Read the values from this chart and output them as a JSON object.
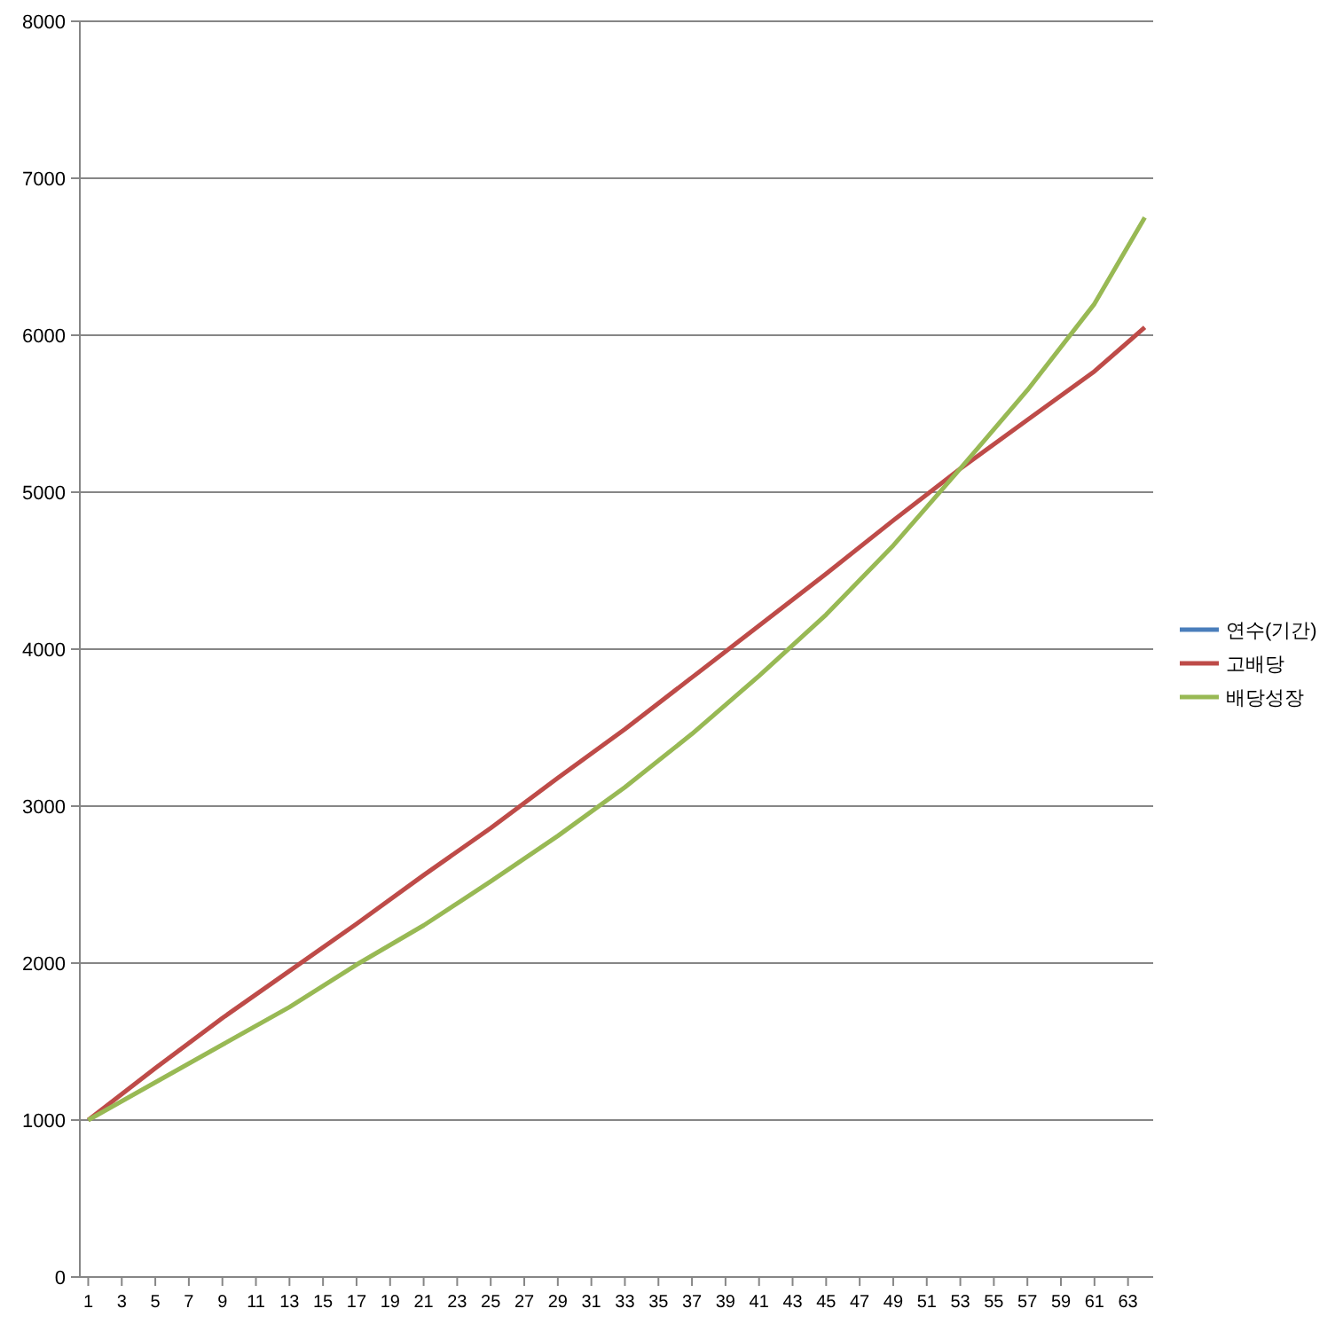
{
  "chart_data": {
    "type": "line",
    "xlim": [
      0.5,
      64.5
    ],
    "xticks": [
      1,
      3,
      5,
      7,
      9,
      11,
      13,
      15,
      17,
      19,
      21,
      23,
      25,
      27,
      29,
      31,
      33,
      35,
      37,
      39,
      41,
      43,
      45,
      47,
      49,
      51,
      53,
      55,
      57,
      59,
      61,
      63
    ],
    "ylim": [
      0,
      8000
    ],
    "yticks": [
      0,
      1000,
      2000,
      3000,
      4000,
      5000,
      6000,
      7000,
      8000
    ],
    "grid": "y",
    "legend": "right",
    "marker": "none",
    "line_style": "solid",
    "series": [
      {
        "name": "연수(기간)",
        "color": "#4a7ebb"
      },
      {
        "name": "고배당",
        "color": "#be4b48",
        "x": [
          1,
          5,
          9,
          13,
          17,
          21,
          25,
          29,
          33,
          37,
          41,
          45,
          49,
          53,
          57,
          61,
          64
        ],
        "values": [
          1000,
          1330,
          1650,
          1950,
          2250,
          2560,
          2860,
          3180,
          3490,
          3820,
          4150,
          4480,
          4820,
          5150,
          5460,
          5770,
          6050
        ]
      },
      {
        "name": "배당성장",
        "color": "#98b954",
        "x": [
          1,
          5,
          9,
          13,
          17,
          21,
          25,
          29,
          33,
          37,
          41,
          45,
          49,
          53,
          57,
          61,
          64
        ],
        "values": [
          1000,
          1240,
          1480,
          1720,
          1990,
          2240,
          2520,
          2810,
          3120,
          3460,
          3830,
          4220,
          4660,
          5150,
          5650,
          6200,
          6750
        ]
      }
    ]
  }
}
